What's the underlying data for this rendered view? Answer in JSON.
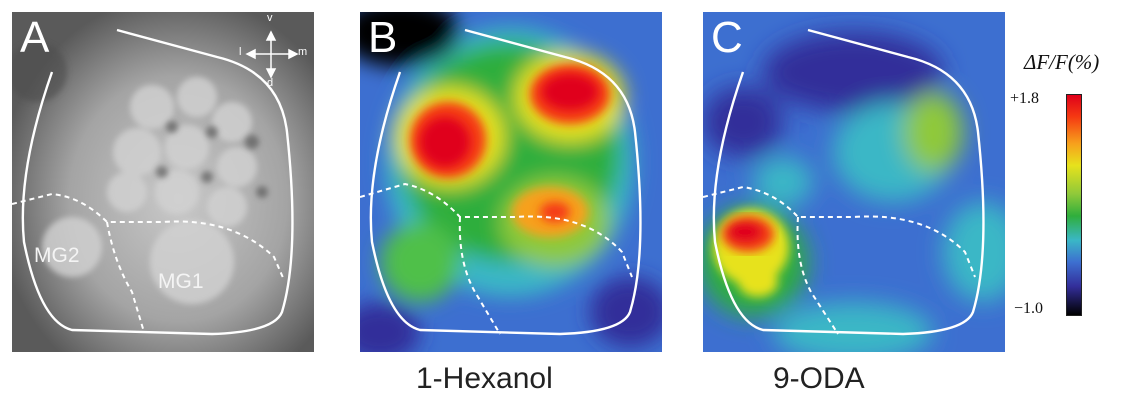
{
  "panels": [
    {
      "letter": "A",
      "regions": {
        "mg2": "MG2",
        "mg1": "MG1"
      },
      "compass": {
        "v": "v",
        "d": "d",
        "l": "l",
        "m": "m"
      }
    },
    {
      "letter": "B",
      "caption": "1-Hexanol"
    },
    {
      "letter": "C",
      "caption": "9-ODA"
    }
  ],
  "colorbar": {
    "title": "ΔF/F(%)",
    "max_label": "+1.8",
    "min_label": "−1.0",
    "colors": [
      "#e0001a",
      "#f7a01c",
      "#e7e21c",
      "#2fae3c",
      "#3ab7c6",
      "#3d6fd0",
      "#332e9a",
      "#000000"
    ]
  }
}
